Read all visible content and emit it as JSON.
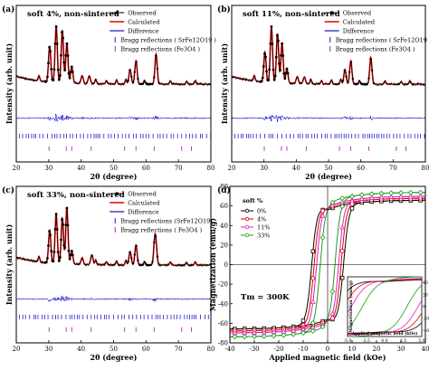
{
  "colors": {
    "observed": "#000000",
    "calculated": "#e00000",
    "difference": "#1a1ad0",
    "bragg_srfe": "#1a1ad0",
    "bragg_fe3o4": "#b020c0",
    "m0": "#000000",
    "m4": "#e00000",
    "m11": "#e020c0",
    "m33": "#1aa01a"
  },
  "chart_data": [
    {
      "type": "line",
      "panel": "(a)",
      "title": "soft 4%, non-sintered",
      "xlabel": "2θ (degree)",
      "ylabel": "Intensity (arb. unit)",
      "xlim": [
        20,
        80
      ],
      "xticks": [
        "20",
        "30",
        "40",
        "50",
        "60",
        "70",
        "80"
      ],
      "legend": [
        "Observed",
        "Calculated",
        "Difference",
        "Bragg reflections ( SrFe12O19 )",
        "Bragg reflections  (Fe3O4 )"
      ],
      "legend_placement": "top-right",
      "peaks": [
        [
          30.3,
          0.55
        ],
        [
          32.3,
          0.85
        ],
        [
          34.2,
          0.8
        ],
        [
          35.6,
          0.6
        ],
        [
          37.1,
          0.25
        ],
        [
          40.3,
          0.12
        ],
        [
          42.5,
          0.12
        ],
        [
          55.1,
          0.22
        ],
        [
          56.9,
          0.35
        ],
        [
          63.1,
          0.45
        ]
      ]
    },
    {
      "type": "line",
      "panel": "(b)",
      "title": "soft 11%, non-sintered",
      "xlabel": "2θ (degree)",
      "ylabel": "Intensity (arb. unit)",
      "xlim": [
        20,
        80
      ],
      "xticks": [
        "20",
        "30",
        "40",
        "50",
        "60",
        "70",
        "80"
      ],
      "legend": [
        "Observed",
        "Calculated",
        "Difference",
        "Bragg reflections ( SrFe12O19 )",
        "Bragg reflections  (Fe3O4 )"
      ],
      "legend_placement": "top-right",
      "peaks": [
        [
          30.3,
          0.45
        ],
        [
          32.3,
          0.85
        ],
        [
          34.2,
          0.75
        ],
        [
          35.6,
          0.6
        ],
        [
          37.1,
          0.22
        ],
        [
          40.3,
          0.1
        ],
        [
          42.5,
          0.1
        ],
        [
          55.1,
          0.22
        ],
        [
          56.9,
          0.35
        ],
        [
          63.1,
          0.4
        ]
      ]
    },
    {
      "type": "line",
      "panel": "(c)",
      "title": "soft 33%, non-sintered",
      "xlabel": "2θ (degree)",
      "ylabel": "Intensity (arb. unit)",
      "xlim": [
        20,
        80
      ],
      "xticks": [
        "20",
        "30",
        "40",
        "50",
        "60",
        "70",
        "80"
      ],
      "legend": [
        "Observed",
        "Calculated",
        "Difference",
        "Bragg reflections  (SrFe12O19)",
        "Bragg reflections  ( Fe3O4 )"
      ],
      "legend_placement": "top-right",
      "peaks": [
        [
          30.3,
          0.5
        ],
        [
          32.3,
          0.75
        ],
        [
          34.2,
          0.7
        ],
        [
          35.6,
          0.85
        ],
        [
          37.1,
          0.2
        ],
        [
          40.3,
          0.1
        ],
        [
          43.3,
          0.15
        ],
        [
          55.1,
          0.2
        ],
        [
          56.9,
          0.3
        ],
        [
          62.7,
          0.35
        ],
        [
          63.1,
          0.2
        ]
      ]
    },
    {
      "type": "line",
      "panel": "(d)",
      "xlabel": "Applied magnetic field (kOe)",
      "ylabel": "Magnetization (emu/g)",
      "xlim": [
        -40,
        40
      ],
      "ylim": [
        -80,
        80
      ],
      "xticks": [
        "-40",
        "-30",
        "-20",
        "-10",
        "0",
        "10",
        "20",
        "30",
        "40"
      ],
      "yticks": [
        "-80",
        "-60",
        "-40",
        "-20",
        "0",
        "20",
        "40",
        "60",
        "80"
      ],
      "legend_title": "soft %",
      "legend": [
        "0%",
        "4%",
        "11%",
        "33%"
      ],
      "annotation": "Tm = 300K",
      "series": [
        {
          "name": "0%",
          "Ms": 66,
          "Hc": 6.5
        },
        {
          "name": "4%",
          "Ms": 68,
          "Hc": 5.5
        },
        {
          "name": "11%",
          "Ms": 70,
          "Hc": 4.5
        },
        {
          "name": "33%",
          "Ms": 74,
          "Hc": 3.0
        }
      ],
      "inset": {
        "xlabel": "Applied magnetic field (kOe)",
        "ylabel": "Magnetization (emu/g)",
        "xticks": [
          "-5.0",
          "-2.5",
          "0.0",
          "2.5",
          "5.0"
        ],
        "yticks": [
          "-40",
          "-20",
          "0",
          "20",
          "40"
        ]
      }
    }
  ]
}
